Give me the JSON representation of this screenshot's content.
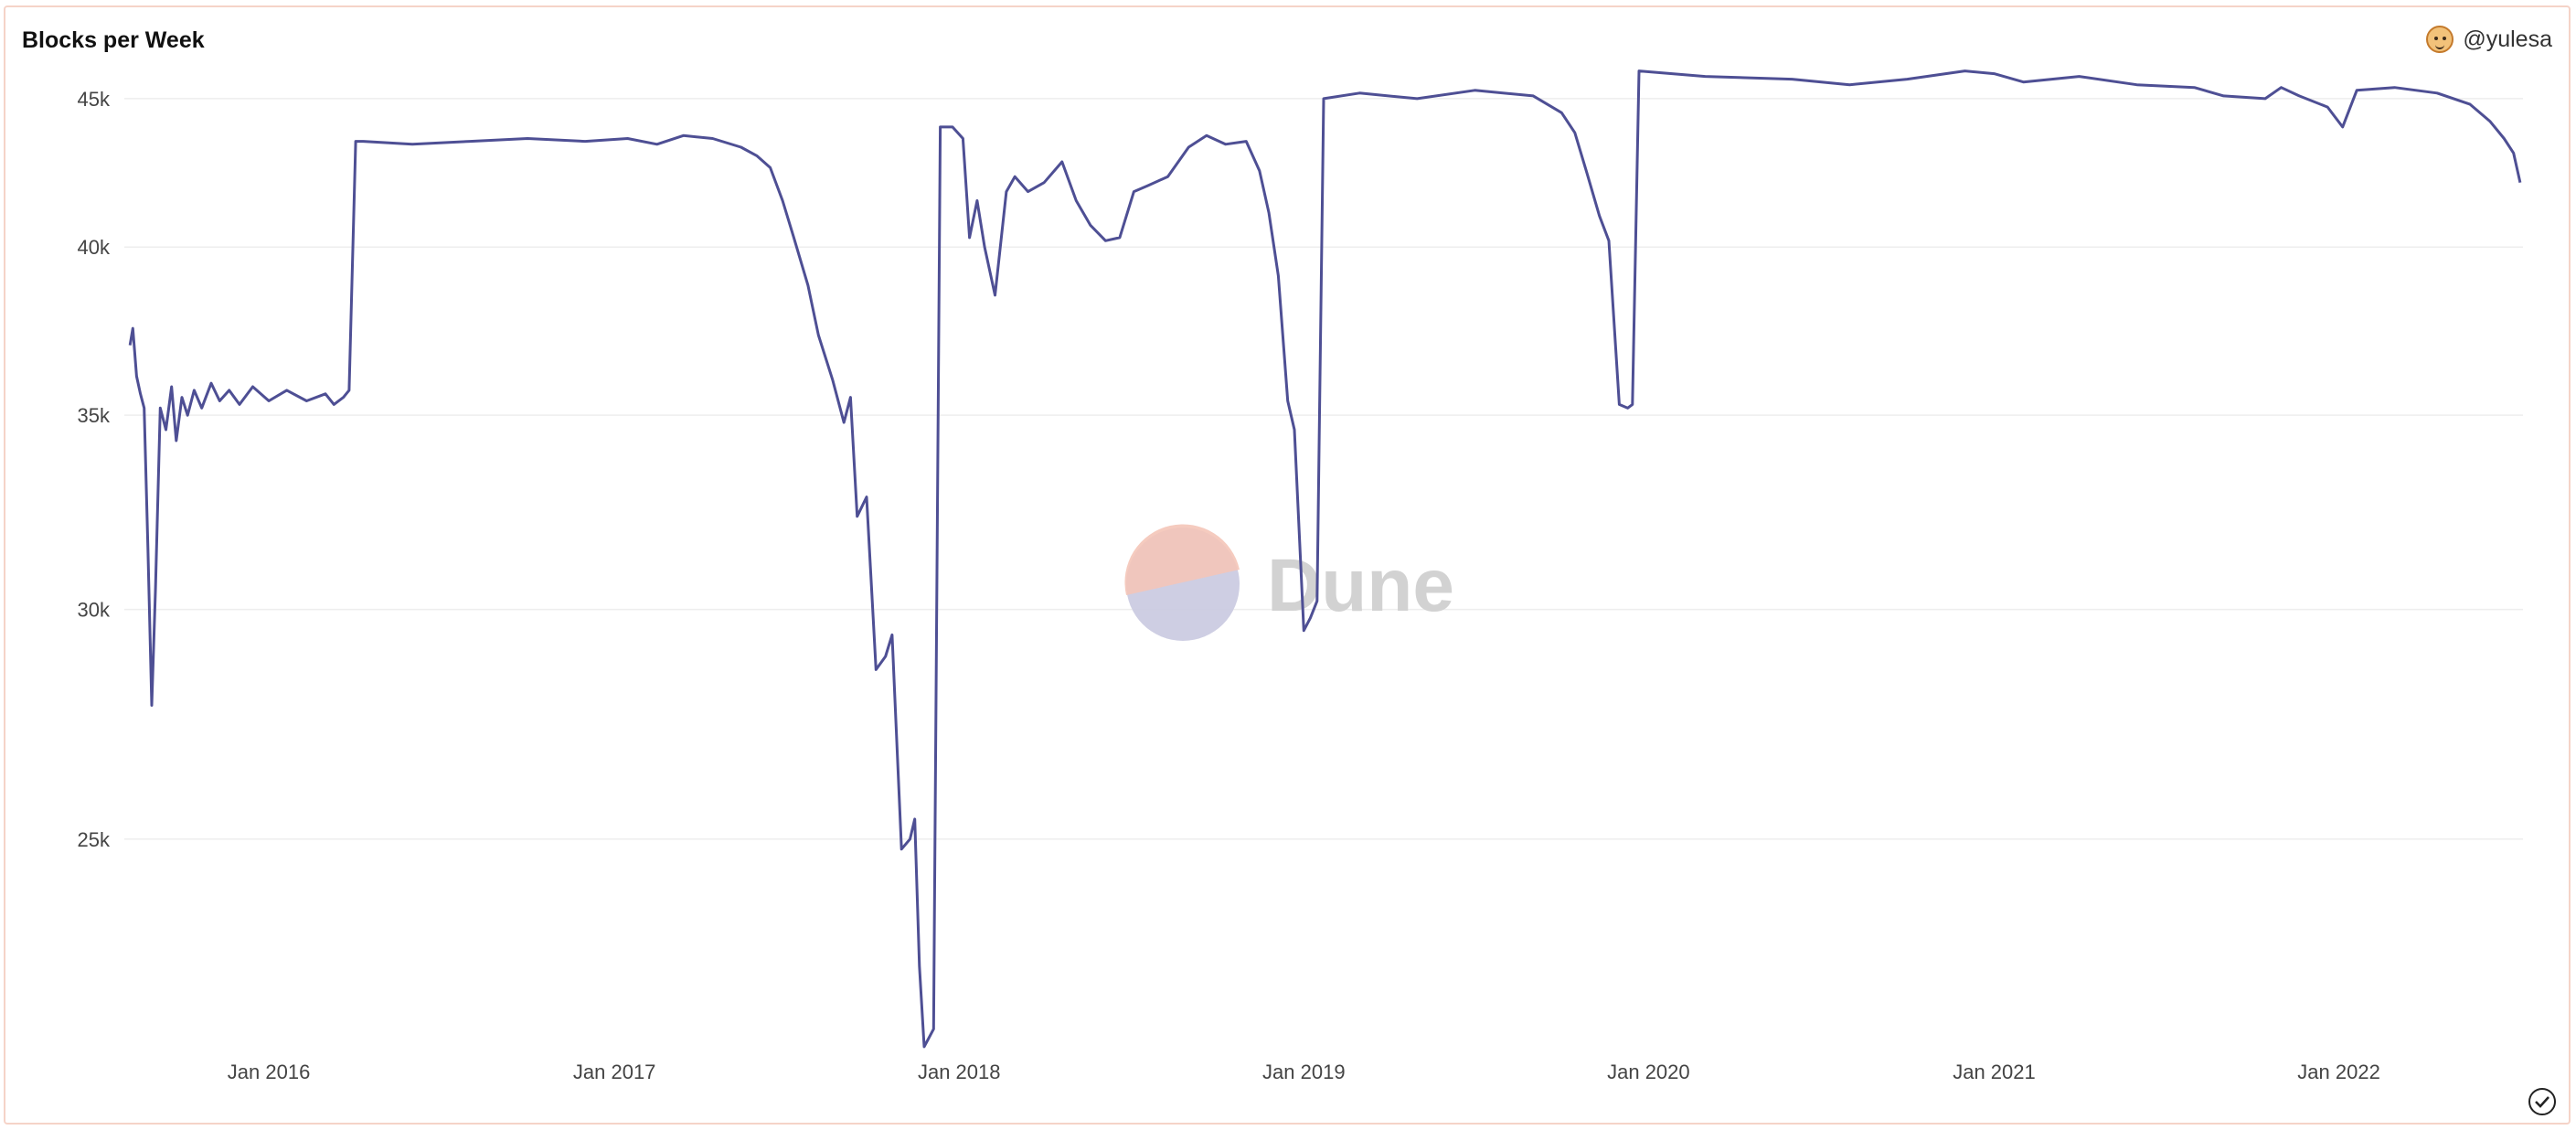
{
  "header": {
    "title": "Blocks per Week",
    "author": "@yulesa",
    "avatar_icon": "avatar-icon"
  },
  "watermark": {
    "text": "Dune"
  },
  "status": {
    "icon": "check-circle-icon"
  },
  "colors": {
    "line": "#4e4f94",
    "grid": "#eeeeee",
    "border": "#f5d3c8",
    "logo_top": "#f4c5b8",
    "logo_bottom": "#c9c9e0"
  },
  "chart_data": {
    "type": "line",
    "title": "Blocks per Week",
    "xlabel": "",
    "ylabel": "",
    "y_scale": "log",
    "ylim": [
      21000,
      47000
    ],
    "xlim": [
      "2015-08-01",
      "2022-07-15"
    ],
    "y_ticks": [
      {
        "value": 25000,
        "label": "25k"
      },
      {
        "value": 30000,
        "label": "30k"
      },
      {
        "value": 35000,
        "label": "35k"
      },
      {
        "value": 40000,
        "label": "40k"
      },
      {
        "value": 45000,
        "label": "45k"
      }
    ],
    "x_ticks": [
      {
        "date": "2016-01-01",
        "label": "Jan 2016"
      },
      {
        "date": "2017-01-01",
        "label": "Jan 2017"
      },
      {
        "date": "2018-01-01",
        "label": "Jan 2018"
      },
      {
        "date": "2019-01-01",
        "label": "Jan 2019"
      },
      {
        "date": "2020-01-01",
        "label": "Jan 2020"
      },
      {
        "date": "2021-01-01",
        "label": "Jan 2021"
      },
      {
        "date": "2022-01-01",
        "label": "Jan 2022"
      }
    ],
    "grid": true,
    "legend": "none",
    "series": [
      {
        "name": "",
        "points": [
          [
            "2015-08-07",
            37000
          ],
          [
            "2015-08-10",
            37500
          ],
          [
            "2015-08-14",
            36100
          ],
          [
            "2015-08-18",
            35600
          ],
          [
            "2015-08-22",
            35200
          ],
          [
            "2015-08-26",
            31500
          ],
          [
            "2015-08-30",
            27800
          ],
          [
            "2015-09-03",
            30500
          ],
          [
            "2015-09-08",
            35200
          ],
          [
            "2015-09-14",
            34600
          ],
          [
            "2015-09-20",
            35800
          ],
          [
            "2015-09-25",
            34300
          ],
          [
            "2015-10-01",
            35500
          ],
          [
            "2015-10-07",
            35000
          ],
          [
            "2015-10-14",
            35700
          ],
          [
            "2015-10-22",
            35200
          ],
          [
            "2015-11-01",
            35900
          ],
          [
            "2015-11-10",
            35400
          ],
          [
            "2015-11-20",
            35700
          ],
          [
            "2015-12-01",
            35300
          ],
          [
            "2015-12-15",
            35800
          ],
          [
            "2016-01-01",
            35400
          ],
          [
            "2016-01-20",
            35700
          ],
          [
            "2016-02-10",
            35400
          ],
          [
            "2016-03-01",
            35600
          ],
          [
            "2016-03-10",
            35300
          ],
          [
            "2016-03-20",
            35500
          ],
          [
            "2016-03-26",
            35700
          ],
          [
            "2016-04-02",
            43500
          ],
          [
            "2016-04-10",
            43500
          ],
          [
            "2016-06-01",
            43400
          ],
          [
            "2016-08-01",
            43500
          ],
          [
            "2016-10-01",
            43600
          ],
          [
            "2016-12-01",
            43500
          ],
          [
            "2017-01-15",
            43600
          ],
          [
            "2017-02-15",
            43400
          ],
          [
            "2017-03-15",
            43700
          ],
          [
            "2017-04-15",
            43600
          ],
          [
            "2017-05-15",
            43300
          ],
          [
            "2017-06-01",
            43000
          ],
          [
            "2017-06-15",
            42600
          ],
          [
            "2017-06-28",
            41500
          ],
          [
            "2017-07-10",
            40300
          ],
          [
            "2017-07-25",
            38800
          ],
          [
            "2017-08-05",
            37300
          ],
          [
            "2017-08-20",
            36000
          ],
          [
            "2017-09-01",
            34800
          ],
          [
            "2017-09-08",
            35500
          ],
          [
            "2017-09-15",
            32300
          ],
          [
            "2017-09-25",
            32800
          ],
          [
            "2017-10-05",
            28600
          ],
          [
            "2017-10-15",
            28900
          ],
          [
            "2017-10-22",
            29400
          ],
          [
            "2017-11-01",
            24800
          ],
          [
            "2017-11-10",
            25000
          ],
          [
            "2017-11-15",
            25400
          ],
          [
            "2017-11-20",
            22600
          ],
          [
            "2017-11-25",
            21200
          ],
          [
            "2017-12-05",
            21500
          ],
          [
            "2017-12-12",
            44000
          ],
          [
            "2017-12-25",
            44000
          ],
          [
            "2018-01-05",
            43600
          ],
          [
            "2018-01-12",
            40300
          ],
          [
            "2018-01-20",
            41500
          ],
          [
            "2018-01-28",
            40000
          ],
          [
            "2018-02-08",
            38500
          ],
          [
            "2018-02-20",
            41800
          ],
          [
            "2018-03-01",
            42300
          ],
          [
            "2018-03-15",
            41800
          ],
          [
            "2018-04-01",
            42100
          ],
          [
            "2018-04-20",
            42800
          ],
          [
            "2018-05-05",
            41500
          ],
          [
            "2018-05-20",
            40700
          ],
          [
            "2018-06-05",
            40200
          ],
          [
            "2018-06-20",
            40300
          ],
          [
            "2018-07-05",
            41800
          ],
          [
            "2018-07-20",
            42000
          ],
          [
            "2018-08-10",
            42300
          ],
          [
            "2018-09-01",
            43300
          ],
          [
            "2018-09-20",
            43700
          ],
          [
            "2018-10-10",
            43400
          ],
          [
            "2018-11-01",
            43500
          ],
          [
            "2018-11-15",
            42500
          ],
          [
            "2018-11-25",
            41100
          ],
          [
            "2018-12-05",
            39100
          ],
          [
            "2018-12-15",
            35400
          ],
          [
            "2018-12-22",
            34600
          ],
          [
            "2019-01-01",
            29500
          ],
          [
            "2019-01-08",
            29800
          ],
          [
            "2019-01-15",
            30200
          ],
          [
            "2019-01-22",
            45000
          ],
          [
            "2019-03-01",
            45200
          ],
          [
            "2019-05-01",
            45000
          ],
          [
            "2019-07-01",
            45300
          ],
          [
            "2019-09-01",
            45100
          ],
          [
            "2019-10-01",
            44500
          ],
          [
            "2019-10-15",
            43800
          ],
          [
            "2019-10-28",
            42400
          ],
          [
            "2019-11-10",
            41000
          ],
          [
            "2019-11-20",
            40200
          ],
          [
            "2019-12-01",
            35300
          ],
          [
            "2019-12-10",
            35200
          ],
          [
            "2019-12-15",
            35300
          ],
          [
            "2019-12-22",
            46000
          ],
          [
            "2020-03-01",
            45800
          ],
          [
            "2020-06-01",
            45700
          ],
          [
            "2020-08-01",
            45500
          ],
          [
            "2020-10-01",
            45700
          ],
          [
            "2020-12-01",
            46000
          ],
          [
            "2021-01-01",
            45900
          ],
          [
            "2021-02-01",
            45600
          ],
          [
            "2021-04-01",
            45800
          ],
          [
            "2021-06-01",
            45500
          ],
          [
            "2021-08-01",
            45400
          ],
          [
            "2021-09-01",
            45100
          ],
          [
            "2021-10-15",
            45000
          ],
          [
            "2021-11-01",
            45400
          ],
          [
            "2021-11-20",
            45100
          ],
          [
            "2021-12-20",
            44700
          ],
          [
            "2022-01-05",
            44000
          ],
          [
            "2022-01-20",
            45300
          ],
          [
            "2022-03-01",
            45400
          ],
          [
            "2022-04-15",
            45200
          ],
          [
            "2022-05-20",
            44800
          ],
          [
            "2022-06-10",
            44200
          ],
          [
            "2022-06-25",
            43600
          ],
          [
            "2022-07-05",
            43100
          ],
          [
            "2022-07-12",
            42100
          ]
        ]
      }
    ]
  }
}
